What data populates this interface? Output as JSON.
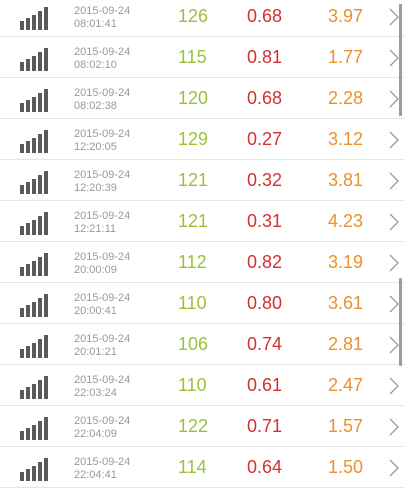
{
  "list": {
    "rows": [
      {
        "date": "2015-09-24",
        "time": "08:01:41",
        "v1": "126",
        "v2": "0.68",
        "v3": "3.97"
      },
      {
        "date": "2015-09-24",
        "time": "08:02:10",
        "v1": "115",
        "v2": "0.81",
        "v3": "1.77"
      },
      {
        "date": "2015-09-24",
        "time": "08:02:38",
        "v1": "120",
        "v2": "0.68",
        "v3": "2.28"
      },
      {
        "date": "2015-09-24",
        "time": "12:20:05",
        "v1": "129",
        "v2": "0.27",
        "v3": "3.12"
      },
      {
        "date": "2015-09-24",
        "time": "12:20:39",
        "v1": "121",
        "v2": "0.32",
        "v3": "3.81"
      },
      {
        "date": "2015-09-24",
        "time": "12:21:11",
        "v1": "121",
        "v2": "0.31",
        "v3": "4.23"
      },
      {
        "date": "2015-09-24",
        "time": "20:00:09",
        "v1": "112",
        "v2": "0.82",
        "v3": "3.19"
      },
      {
        "date": "2015-09-24",
        "time": "20:00:41",
        "v1": "110",
        "v2": "0.80",
        "v3": "3.61"
      },
      {
        "date": "2015-09-24",
        "time": "20:01:21",
        "v1": "106",
        "v2": "0.74",
        "v3": "2.81"
      },
      {
        "date": "2015-09-24",
        "time": "22:03:24",
        "v1": "110",
        "v2": "0.61",
        "v3": "2.47"
      },
      {
        "date": "2015-09-24",
        "time": "22:04:09",
        "v1": "122",
        "v2": "0.71",
        "v3": "1.57"
      },
      {
        "date": "2015-09-24",
        "time": "22:04:41",
        "v1": "114",
        "v2": "0.64",
        "v3": "1.50"
      }
    ]
  },
  "icons": {
    "row_icon": "signal-bars-icon",
    "row_action": "chevron-right-icon"
  },
  "colors": {
    "value1": "#9bc13c",
    "value2": "#d2312e",
    "value3": "#e8922b",
    "icon": "#5a5a5a"
  }
}
